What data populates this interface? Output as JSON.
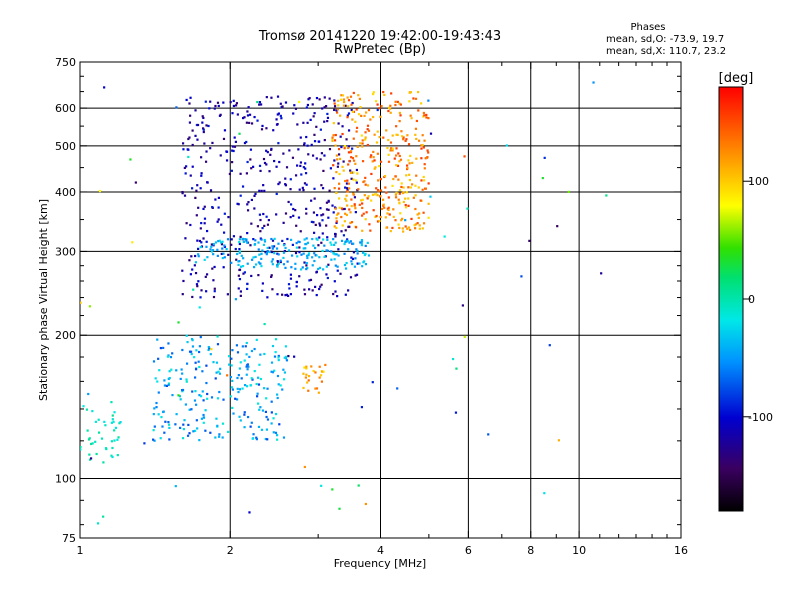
{
  "chart_data": {
    "type": "scatter",
    "title_line1": "Tromsø 20141220 19:42:00-19:43:43",
    "title_line2": "RwPretec (Bp)",
    "stats": {
      "heading": "Phases",
      "line1": "mean, sd,O: -73.9, 19.7",
      "line2": "mean, sd,X: 110.7, 23.2"
    },
    "xlabel": "Frequency [MHz]",
    "ylabel": "Stationary phase Virtual Height [km]",
    "x_scale": "log",
    "y_scale": "log",
    "xlim": [
      1,
      16
    ],
    "ylim": [
      75,
      750
    ],
    "x_ticks": [
      1,
      2,
      4,
      6,
      8,
      10,
      16
    ],
    "y_ticks": [
      75,
      100,
      200,
      300,
      400,
      500,
      600,
      750
    ],
    "x_gridlines": [
      2,
      4,
      6,
      8,
      10
    ],
    "y_gridlines": [
      100,
      200,
      300,
      400,
      500,
      600
    ],
    "colorbar": {
      "label": "[deg]",
      "range": [
        -180,
        180
      ],
      "ticks": [
        {
          "value": 100,
          "label": "100"
        },
        {
          "value": 0,
          "label": "0"
        },
        {
          "value": -100,
          "label": "-100"
        }
      ],
      "stops": [
        {
          "t": 0.0,
          "color": "#000000"
        },
        {
          "t": 0.1,
          "color": "#3a0060"
        },
        {
          "t": 0.22,
          "color": "#0000d0"
        },
        {
          "t": 0.35,
          "color": "#0090ff"
        },
        {
          "t": 0.45,
          "color": "#00e8e8"
        },
        {
          "t": 0.55,
          "color": "#00e070"
        },
        {
          "t": 0.62,
          "color": "#30e000"
        },
        {
          "t": 0.72,
          "color": "#ffff00"
        },
        {
          "t": 0.86,
          "color": "#ff8000"
        },
        {
          "t": 1.0,
          "color": "#ff0000"
        }
      ]
    },
    "point_groups": [
      {
        "name": "E_layer_low",
        "f": [
          1.0,
          1.2
        ],
        "h": [
          105,
          145
        ],
        "phase": [
          -20,
          10
        ],
        "n": 40
      },
      {
        "name": "Es_trace",
        "f": [
          1.4,
          2.6
        ],
        "h": [
          120,
          200
        ],
        "phase": [
          -80,
          -10
        ],
        "n": 260
      },
      {
        "name": "F_O_trace",
        "f": [
          1.6,
          3.6
        ],
        "h": [
          240,
          640
        ],
        "phase": [
          -140,
          -90
        ],
        "n": 500
      },
      {
        "name": "F_lower_trace",
        "f": [
          1.7,
          3.8
        ],
        "h": [
          275,
          320
        ],
        "phase": [
          -60,
          -20
        ],
        "n": 200
      },
      {
        "name": "F_X_trace",
        "f": [
          3.2,
          5.0
        ],
        "h": [
          330,
          650
        ],
        "phase": [
          90,
          160
        ],
        "n": 380
      },
      {
        "name": "oblique_echo",
        "f": [
          2.8,
          3.1
        ],
        "h": [
          150,
          175
        ],
        "phase": [
          90,
          140
        ],
        "n": 25
      },
      {
        "name": "noise",
        "f": [
          1.0,
          12.0
        ],
        "h": [
          80,
          700
        ],
        "phase": [
          -150,
          150
        ],
        "n": 70
      }
    ]
  }
}
